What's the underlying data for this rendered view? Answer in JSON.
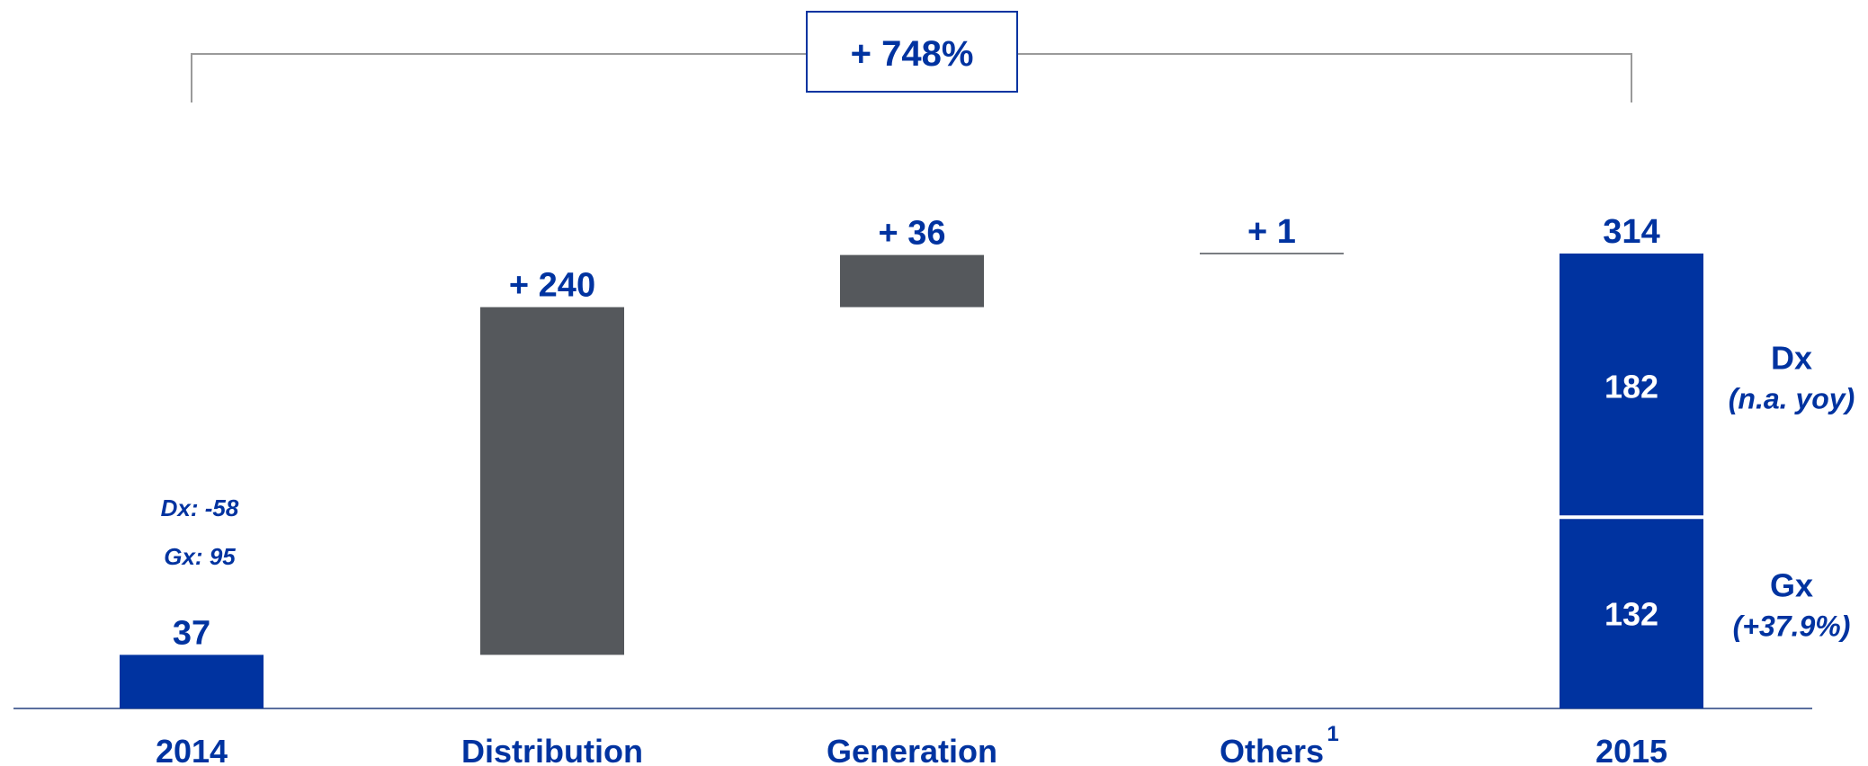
{
  "chart_data": {
    "type": "waterfall",
    "categories": [
      "2014",
      "Distribution",
      "Generation",
      "Others",
      "2015"
    ],
    "category_footnotes": [
      "",
      "",
      "",
      "1",
      ""
    ],
    "steps": [
      {
        "category": "2014",
        "kind": "total",
        "value": 37,
        "label": "37"
      },
      {
        "category": "Distribution",
        "kind": "delta",
        "value": 240,
        "label": "+ 240"
      },
      {
        "category": "Generation",
        "kind": "delta",
        "value": 36,
        "label": "+ 36"
      },
      {
        "category": "Others",
        "kind": "delta",
        "value": 1,
        "label": "+ 1"
      },
      {
        "category": "2015",
        "kind": "total",
        "value": 314,
        "label": "314",
        "segments": [
          {
            "name": "Gx",
            "value": 132,
            "label": "132",
            "note": "(+37.9%)"
          },
          {
            "name": "Dx",
            "value": 182,
            "label": "182",
            "note": "(n.a. yoy)"
          }
        ]
      }
    ],
    "annotations_2014": [
      "Dx: -58",
      "Gx: 95"
    ],
    "growth_label": "+ 748%",
    "ylim": [
      0,
      314
    ],
    "colors": {
      "total": "#0033a0",
      "delta": "#55585c",
      "text": "#0033a0",
      "bracket": "#9a9a9a",
      "axis": "#5a6f9e"
    }
  }
}
